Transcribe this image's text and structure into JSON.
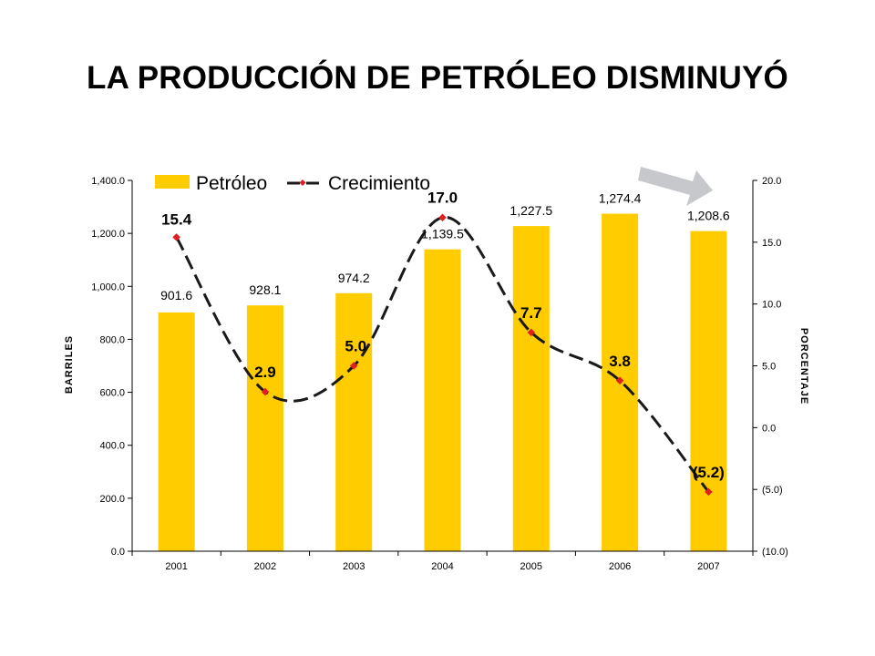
{
  "title": "LA PRODUCCIÓN DE PETRÓLEO DISMINUYÓ",
  "colors": {
    "bar": "#FFCC00",
    "line": "#1a1a1a",
    "marker": "#E02020",
    "arrow": "#C6C8CC"
  },
  "chart_data": {
    "type": "bar+line",
    "categories": [
      "2001",
      "2002",
      "2003",
      "2004",
      "2005",
      "2006",
      "2007"
    ],
    "series": [
      {
        "name": "Petróleo",
        "type": "bar",
        "axis": "left",
        "values": [
          901.6,
          928.1,
          974.2,
          1139.5,
          1227.5,
          1274.4,
          1208.6
        ],
        "labels": [
          "901.6",
          "928.1",
          "974.2",
          "1,139.5",
          "1,227.5",
          "1,274.4",
          "1,208.6"
        ]
      },
      {
        "name": "Crecimiento",
        "type": "line",
        "axis": "right",
        "style": "dashed-smooth",
        "values": [
          15.4,
          2.9,
          5.0,
          17.0,
          7.7,
          3.8,
          -5.2
        ],
        "labels": [
          "15.4",
          "2.9",
          "5.0",
          "17.0",
          "7.7",
          "3.8",
          "(5.2)"
        ]
      }
    ],
    "ylabel_left": "BARRILES",
    "ylabel_right": "PORCENTAJE",
    "ylim_left": [
      0,
      1400
    ],
    "ylim_right": [
      -10,
      20
    ],
    "yticks_left": [
      "0.0",
      "200.0",
      "400.0",
      "600.0",
      "800.0",
      "1,000.0",
      "1,200.0",
      "1,400.0"
    ],
    "yticks_right": [
      "(10.0)",
      "(5.0)",
      "0.0",
      "5.0",
      "10.0",
      "15.0",
      "20.0"
    ],
    "legend_position": "top-left",
    "grid": false
  }
}
